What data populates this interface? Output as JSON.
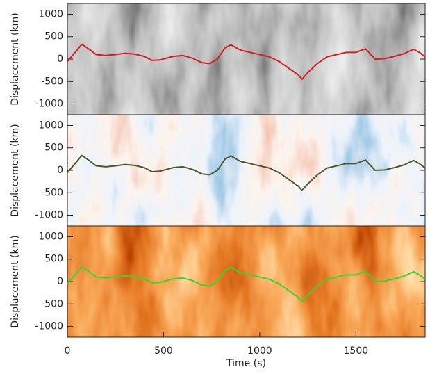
{
  "chart_data": [
    {
      "type": "line",
      "y_label": "Displacement (km)",
      "colormap": "gray",
      "x": [
        0,
        40,
        75,
        110,
        150,
        200,
        250,
        300,
        350,
        400,
        440,
        480,
        550,
        600,
        650,
        700,
        740,
        780,
        820,
        850,
        900,
        950,
        1000,
        1050,
        1100,
        1150,
        1200,
        1220,
        1250,
        1300,
        1350,
        1400,
        1450,
        1500,
        1550,
        1600,
        1650,
        1700,
        1750,
        1800,
        1830,
        1860
      ],
      "series": [
        {
          "color": "#d02020",
          "values": [
            -50,
            150,
            330,
            230,
            100,
            80,
            100,
            130,
            110,
            60,
            -30,
            -20,
            60,
            80,
            20,
            -80,
            -100,
            0,
            250,
            320,
            200,
            150,
            100,
            50,
            -50,
            -200,
            -350,
            -450,
            -300,
            -100,
            50,
            100,
            150,
            150,
            230,
            0,
            10,
            60,
            120,
            220,
            150,
            50
          ]
        }
      ],
      "xlim": [
        0,
        1860
      ],
      "ylim": [
        -1240,
        1240
      ],
      "yticks": [
        -1000,
        -500,
        0,
        500,
        1000
      ]
    },
    {
      "type": "line",
      "y_label": "Displacement (km)",
      "colormap": "bluered",
      "x": [
        0,
        40,
        75,
        110,
        150,
        200,
        250,
        300,
        350,
        400,
        440,
        480,
        550,
        600,
        650,
        700,
        740,
        780,
        820,
        850,
        900,
        950,
        1000,
        1050,
        1100,
        1150,
        1200,
        1220,
        1250,
        1300,
        1350,
        1400,
        1450,
        1500,
        1550,
        1600,
        1650,
        1700,
        1750,
        1800,
        1830,
        1860
      ],
      "series": [
        {
          "color": "#4b5a2c",
          "values": [
            -50,
            150,
            330,
            230,
            100,
            80,
            100,
            130,
            110,
            60,
            -30,
            -20,
            60,
            80,
            20,
            -80,
            -100,
            0,
            250,
            320,
            200,
            150,
            100,
            50,
            -50,
            -200,
            -350,
            -450,
            -300,
            -100,
            50,
            100,
            150,
            150,
            230,
            0,
            10,
            60,
            120,
            220,
            150,
            50
          ]
        }
      ],
      "xlim": [
        0,
        1860
      ],
      "ylim": [
        -1240,
        1240
      ],
      "yticks": [
        -1000,
        -500,
        0,
        500,
        1000
      ]
    },
    {
      "type": "line",
      "y_label": "Displacement (km)",
      "x_label": "Time (s)",
      "colormap": "heat",
      "x": [
        0,
        40,
        75,
        110,
        150,
        200,
        250,
        300,
        350,
        400,
        440,
        480,
        550,
        600,
        650,
        700,
        740,
        780,
        820,
        850,
        900,
        950,
        1000,
        1050,
        1100,
        1150,
        1200,
        1220,
        1250,
        1300,
        1350,
        1400,
        1450,
        1500,
        1550,
        1600,
        1650,
        1700,
        1750,
        1800,
        1830,
        1860
      ],
      "series": [
        {
          "color": "#33d633",
          "values": [
            -50,
            150,
            330,
            230,
            100,
            80,
            100,
            130,
            110,
            60,
            -30,
            -20,
            60,
            80,
            20,
            -80,
            -100,
            0,
            250,
            320,
            200,
            150,
            100,
            50,
            -50,
            -200,
            -350,
            -450,
            -300,
            -100,
            50,
            100,
            150,
            150,
            230,
            0,
            10,
            60,
            120,
            220,
            150,
            50
          ]
        }
      ],
      "xlim": [
        0,
        1860
      ],
      "ylim": [
        -1240,
        1240
      ],
      "yticks": [
        -1000,
        -500,
        0,
        500,
        1000
      ],
      "xticks": [
        0,
        500,
        1000,
        1500
      ]
    }
  ]
}
